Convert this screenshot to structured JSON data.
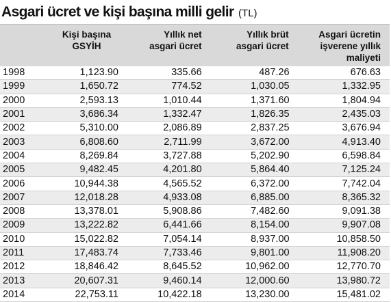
{
  "title": {
    "main": "Asgari ücret ve kişi başına milli gelir",
    "unit": "(TL)"
  },
  "chart_data": {
    "type": "table",
    "columns": [
      "",
      "Kişi başına GSYİH",
      "Yıllık net asgari ücret",
      "Yıllık brüt asgari ücret",
      "Asgari ücretin işverene yıllık maliyeti"
    ],
    "header_lines": [
      [],
      [
        "Kişi başına",
        "GSYİH"
      ],
      [
        "Yıllık net",
        "asgari ücret"
      ],
      [
        "Yıllık brüt",
        "asgari ücret"
      ],
      [
        "Asgari ücretin",
        "işverene yıllık",
        "maliyeti"
      ]
    ],
    "rows": [
      [
        "1998",
        "1,123.90",
        "335.66",
        "487.26",
        "676.63"
      ],
      [
        "1999",
        "1,650.72",
        "774.52",
        "1,030.05",
        "1,332.95"
      ],
      [
        "2000",
        "2,593.13",
        "1,010.44",
        "1,371.60",
        "1,804.94"
      ],
      [
        "2001",
        "3,686.34",
        "1,332.47",
        "1,826.35",
        "2,435.03"
      ],
      [
        "2002",
        "5,310.00",
        "2,086.89",
        "2,837.25",
        "3,676.94"
      ],
      [
        "2003",
        "6,808.60",
        "2,711.99",
        "3,672.00",
        "4,913.40"
      ],
      [
        "2004",
        "8,269.84",
        "3,727.88",
        "5,202.90",
        "6,598.84"
      ],
      [
        "2005",
        "9,482.45",
        "4,201.80",
        "5,864.40",
        "7,125.24"
      ],
      [
        "2006",
        "10,944.38",
        "4,565.52",
        "6,372.00",
        "7,742.04"
      ],
      [
        "2007",
        "12,018.28",
        "4,933.08",
        "6,885.00",
        "8,365.32"
      ],
      [
        "2008",
        "13,378.01",
        "5,908.86",
        "7,482.60",
        "9,091.38"
      ],
      [
        "2009",
        "13,222.82",
        "6,441.66",
        "8,154.00",
        "9,907.08"
      ],
      [
        "2010",
        "15,022.82",
        "7,054.14",
        "8,937.00",
        "10,858.50"
      ],
      [
        "2011",
        "17,483.74",
        "7,733.46",
        "9,801.00",
        "11,908.20"
      ],
      [
        "2012",
        "18,846.42",
        "8,645.52",
        "10,962.00",
        "12,770.70"
      ],
      [
        "2013",
        "20,607.31",
        "9,460.14",
        "12,000.60",
        "13,980.72"
      ],
      [
        "2014",
        "22,753.11",
        "10,422.18",
        "13,230.00",
        "15,481.02"
      ]
    ]
  },
  "colors": {
    "header_bg": "#d9d9d9",
    "stripe_bg": "#ececec",
    "text": "#111111"
  }
}
